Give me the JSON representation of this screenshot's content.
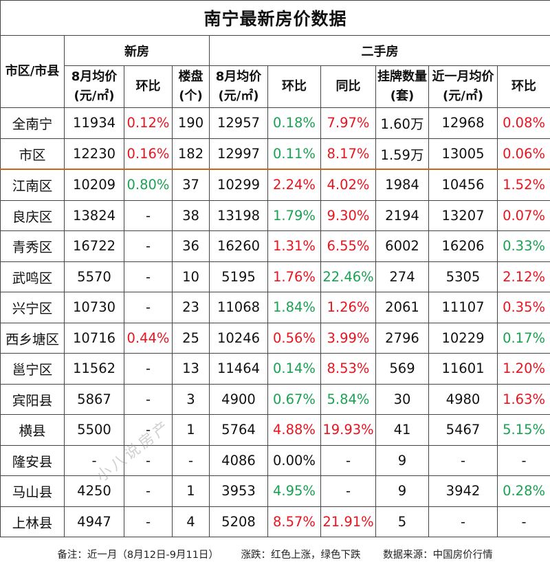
{
  "title": "南宁最新房价数据",
  "colors": {
    "up": "#e8141e",
    "down": "#1aa152",
    "divider": "#c8651b"
  },
  "header": {
    "region": "市区/市县",
    "new_group": "新房",
    "second_group": "二手房",
    "columns": {
      "new_price": "8月均价(元/㎡)",
      "new_mom": "环比",
      "new_projects": "楼盘(个)",
      "sec_price": "8月均价(元/㎡)",
      "sec_mom": "环比",
      "sec_yoy": "同比",
      "listings": "挂牌数量(套)",
      "recent_price": "近一月均价(元/㎡)",
      "recent_mom": "环比"
    }
  },
  "rows": [
    {
      "name": "全南宁",
      "new_price": "11934",
      "new_mom": "0.12%",
      "new_mom_c": "up",
      "projects": "190",
      "sec_price": "12957",
      "sec_mom": "0.18%",
      "sec_mom_c": "down",
      "sec_yoy": "7.97%",
      "sec_yoy_c": "up",
      "listings": "1.60万",
      "recent_price": "12968",
      "recent_mom": "0.08%",
      "recent_mom_c": "up"
    },
    {
      "name": "市区",
      "new_price": "12230",
      "new_mom": "0.16%",
      "new_mom_c": "up",
      "projects": "182",
      "sec_price": "12997",
      "sec_mom": "0.11%",
      "sec_mom_c": "down",
      "sec_yoy": "8.17%",
      "sec_yoy_c": "up",
      "listings": "1.59万",
      "recent_price": "13005",
      "recent_mom": "0.06%",
      "recent_mom_c": "up"
    },
    {
      "name": "江南区",
      "new_price": "10209",
      "new_mom": "0.80%",
      "new_mom_c": "down",
      "projects": "37",
      "sec_price": "10299",
      "sec_mom": "2.24%",
      "sec_mom_c": "up",
      "sec_yoy": "4.02%",
      "sec_yoy_c": "up",
      "listings": "1984",
      "recent_price": "10456",
      "recent_mom": "1.52%",
      "recent_mom_c": "up"
    },
    {
      "name": "良庆区",
      "new_price": "13824",
      "new_mom": "-",
      "new_mom_c": "flat",
      "projects": "38",
      "sec_price": "13198",
      "sec_mom": "1.79%",
      "sec_mom_c": "down",
      "sec_yoy": "9.30%",
      "sec_yoy_c": "up",
      "listings": "2194",
      "recent_price": "13207",
      "recent_mom": "0.07%",
      "recent_mom_c": "up"
    },
    {
      "name": "青秀区",
      "new_price": "16722",
      "new_mom": "-",
      "new_mom_c": "flat",
      "projects": "36",
      "sec_price": "16260",
      "sec_mom": "1.31%",
      "sec_mom_c": "up",
      "sec_yoy": "6.55%",
      "sec_yoy_c": "up",
      "listings": "6002",
      "recent_price": "16206",
      "recent_mom": "0.33%",
      "recent_mom_c": "down"
    },
    {
      "name": "武鸣区",
      "new_price": "5570",
      "new_mom": "-",
      "new_mom_c": "flat",
      "projects": "10",
      "sec_price": "5195",
      "sec_mom": "1.76%",
      "sec_mom_c": "up",
      "sec_yoy": "22.46%",
      "sec_yoy_c": "down",
      "listings": "274",
      "recent_price": "5305",
      "recent_mom": "2.12%",
      "recent_mom_c": "up"
    },
    {
      "name": "兴宁区",
      "new_price": "10730",
      "new_mom": "-",
      "new_mom_c": "flat",
      "projects": "23",
      "sec_price": "11068",
      "sec_mom": "1.84%",
      "sec_mom_c": "down",
      "sec_yoy": "1.26%",
      "sec_yoy_c": "up",
      "listings": "2061",
      "recent_price": "11107",
      "recent_mom": "0.35%",
      "recent_mom_c": "up"
    },
    {
      "name": "西乡塘区",
      "new_price": "10716",
      "new_mom": "0.44%",
      "new_mom_c": "up",
      "projects": "25",
      "sec_price": "10246",
      "sec_mom": "0.56%",
      "sec_mom_c": "up",
      "sec_yoy": "3.99%",
      "sec_yoy_c": "up",
      "listings": "2796",
      "recent_price": "10229",
      "recent_mom": "0.17%",
      "recent_mom_c": "down"
    },
    {
      "name": "邕宁区",
      "new_price": "11562",
      "new_mom": "-",
      "new_mom_c": "flat",
      "projects": "13",
      "sec_price": "11464",
      "sec_mom": "0.14%",
      "sec_mom_c": "down",
      "sec_yoy": "8.53%",
      "sec_yoy_c": "up",
      "listings": "569",
      "recent_price": "11601",
      "recent_mom": "1.20%",
      "recent_mom_c": "up"
    },
    {
      "name": "宾阳县",
      "new_price": "5867",
      "new_mom": "-",
      "new_mom_c": "flat",
      "projects": "3",
      "sec_price": "4900",
      "sec_mom": "0.67%",
      "sec_mom_c": "down",
      "sec_yoy": "5.84%",
      "sec_yoy_c": "down",
      "listings": "30",
      "recent_price": "4980",
      "recent_mom": "1.63%",
      "recent_mom_c": "up"
    },
    {
      "name": "横县",
      "new_price": "5500",
      "new_mom": "-",
      "new_mom_c": "flat",
      "projects": "1",
      "sec_price": "5764",
      "sec_mom": "4.88%",
      "sec_mom_c": "up",
      "sec_yoy": "19.93%",
      "sec_yoy_c": "up",
      "listings": "41",
      "recent_price": "5467",
      "recent_mom": "5.15%",
      "recent_mom_c": "down"
    },
    {
      "name": "隆安县",
      "new_price": "-",
      "new_mom": "-",
      "new_mom_c": "flat",
      "projects": "-",
      "sec_price": "4086",
      "sec_mom": "0.00%",
      "sec_mom_c": "flat",
      "sec_yoy": "-",
      "sec_yoy_c": "flat",
      "listings": "9",
      "recent_price": "-",
      "recent_mom": "-",
      "recent_mom_c": "flat"
    },
    {
      "name": "马山县",
      "new_price": "4250",
      "new_mom": "-",
      "new_mom_c": "flat",
      "projects": "1",
      "sec_price": "3953",
      "sec_mom": "4.95%",
      "sec_mom_c": "down",
      "sec_yoy": "-",
      "sec_yoy_c": "flat",
      "listings": "9",
      "recent_price": "3942",
      "recent_mom": "0.28%",
      "recent_mom_c": "down"
    },
    {
      "name": "上林县",
      "new_price": "4947",
      "new_mom": "-",
      "new_mom_c": "flat",
      "projects": "4",
      "sec_price": "5208",
      "sec_mom": "8.57%",
      "sec_mom_c": "up",
      "sec_yoy": "21.91%",
      "sec_yoy_c": "up",
      "listings": "5",
      "recent_price": "-",
      "recent_mom": "-",
      "recent_mom_c": "flat"
    }
  ],
  "footnote": {
    "note": "备注：近一月（8月12日-9月11日）",
    "legend": "涨跌：红色上涨，绿色下跌",
    "source": "数据来源：中国房价行情"
  },
  "watermark": "小八说房产"
}
